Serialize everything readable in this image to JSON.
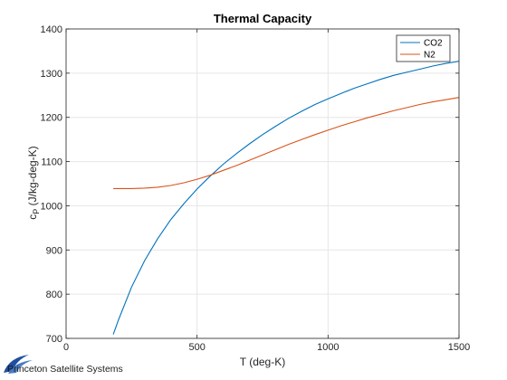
{
  "logo": {
    "text": "Princeton Satellite Systems"
  },
  "chart_data": {
    "type": "line",
    "title": "Thermal Capacity",
    "xlabel": "T (deg-K)",
    "ylabel": {
      "base": "c",
      "sub": "P",
      "rest": " (J/kg-deg-K)"
    },
    "xlim": [
      0,
      1500
    ],
    "ylim": [
      700,
      1400
    ],
    "xticks": [
      0,
      500,
      1000,
      1500
    ],
    "yticks": [
      700,
      800,
      900,
      1000,
      1100,
      1200,
      1300,
      1400
    ],
    "grid": true,
    "legend_position": "top-right",
    "series": [
      {
        "name": "CO2",
        "color": "#0072bd",
        "x": [
          180,
          200,
          250,
          300,
          350,
          400,
          450,
          500,
          550,
          600,
          650,
          700,
          750,
          800,
          850,
          900,
          950,
          1000,
          1050,
          1100,
          1150,
          1200,
          1250,
          1300,
          1350,
          1400,
          1450,
          1500
        ],
        "y": [
          709,
          742,
          816,
          876,
          926,
          969,
          1005,
          1038,
          1067,
          1094,
          1118,
          1140,
          1161,
          1180,
          1198,
          1214,
          1229,
          1242,
          1254,
          1266,
          1276,
          1286,
          1295,
          1302,
          1309,
          1316,
          1322,
          1327
        ]
      },
      {
        "name": "N2",
        "color": "#d95319",
        "x": [
          180,
          200,
          250,
          300,
          350,
          400,
          450,
          500,
          550,
          600,
          650,
          700,
          750,
          800,
          850,
          900,
          950,
          1000,
          1050,
          1100,
          1150,
          1200,
          1250,
          1300,
          1350,
          1400,
          1450,
          1500
        ],
        "y": [
          1039,
          1039,
          1039,
          1040,
          1042,
          1046,
          1052,
          1060,
          1069,
          1080,
          1091,
          1103,
          1115,
          1127,
          1139,
          1150,
          1161,
          1171,
          1181,
          1190,
          1199,
          1207,
          1215,
          1222,
          1229,
          1235,
          1240,
          1245
        ]
      }
    ]
  }
}
